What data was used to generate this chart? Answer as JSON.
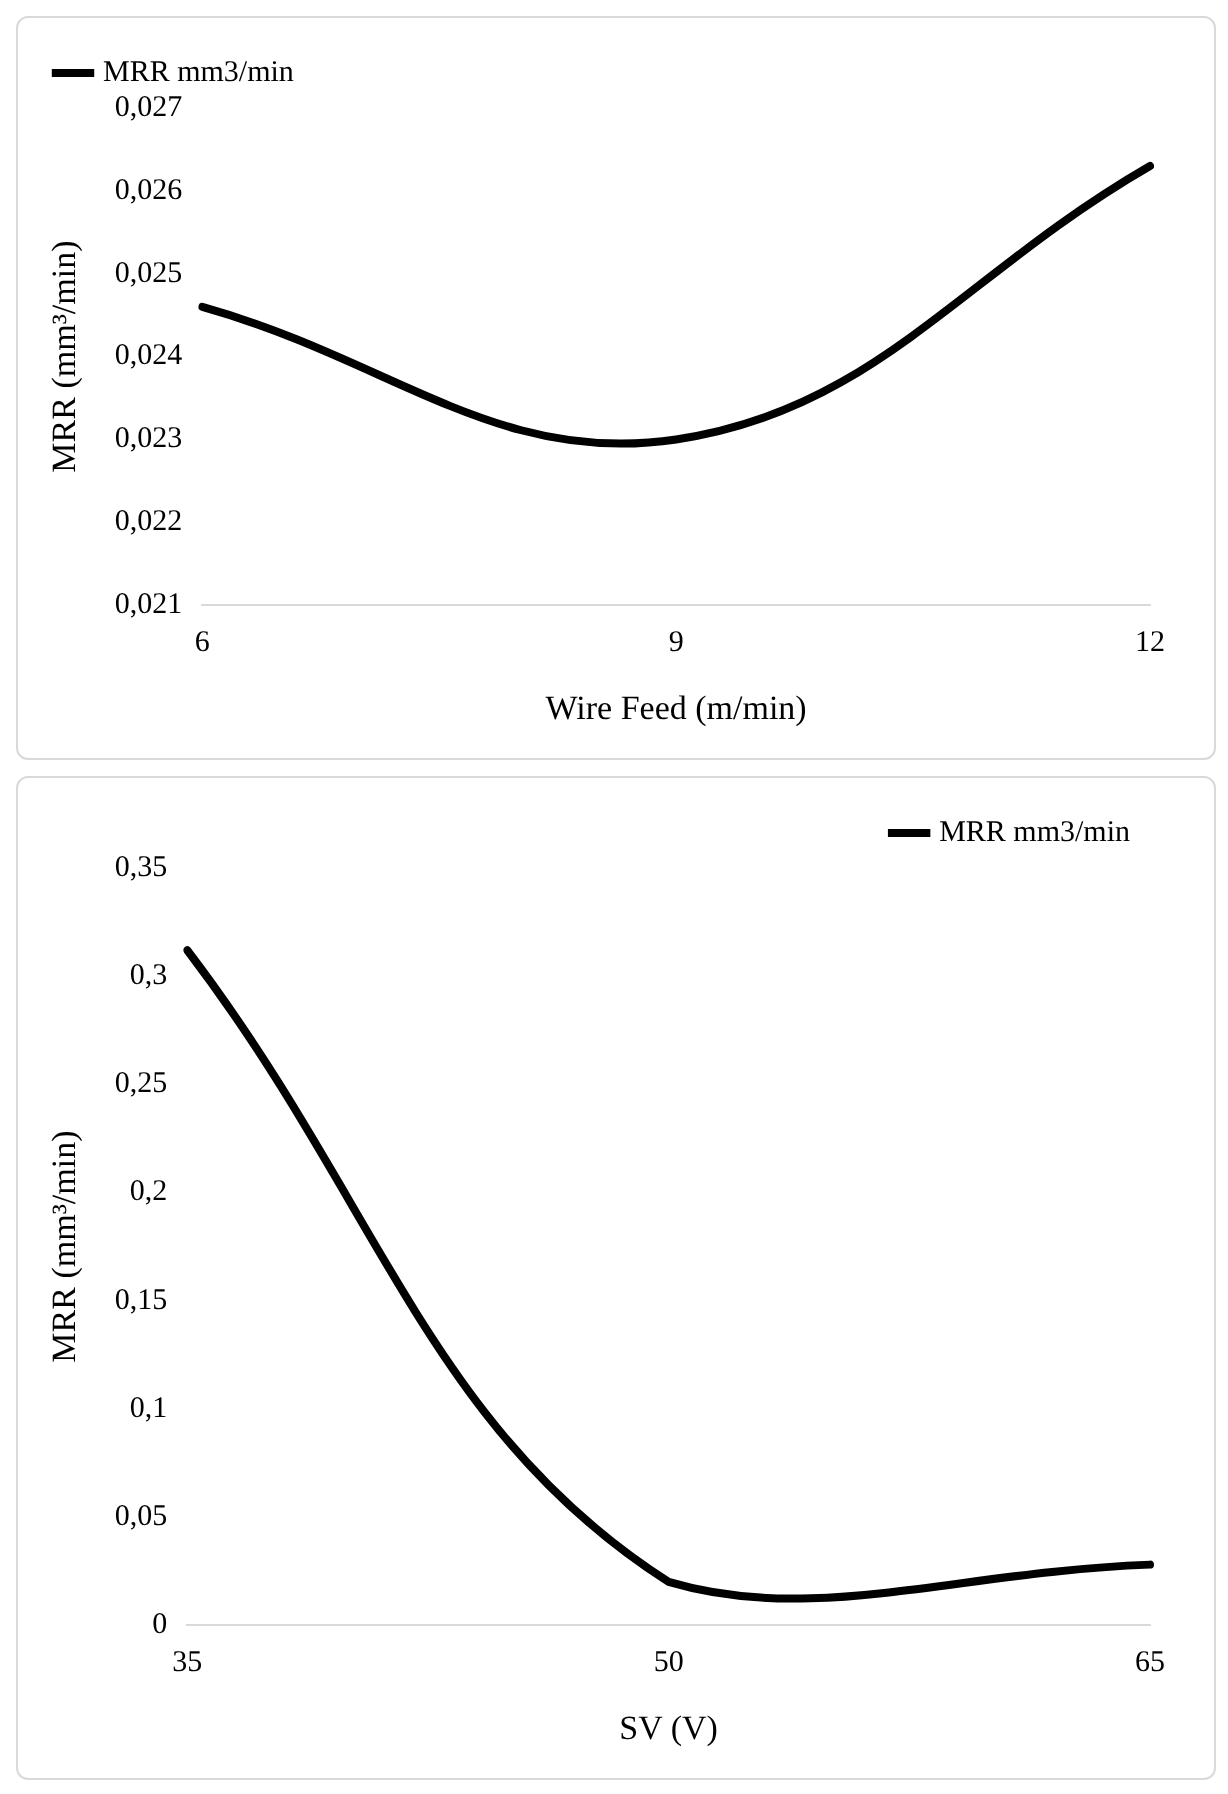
{
  "chart_data": [
    {
      "type": "line",
      "xlabel": "Wire Feed (m/min)",
      "ylabel": "MRR (mm³/min)",
      "categories": [
        "6",
        "9",
        "12"
      ],
      "series": [
        {
          "name": "MRR mm3/min",
          "color": "#000000",
          "values": [
            0.0246,
            0.023,
            0.0263
          ]
        }
      ],
      "ylim": [
        0.021,
        0.027
      ],
      "yticks": [
        {
          "value": 0.021,
          "label": "0,021"
        },
        {
          "value": 0.022,
          "label": "0,022"
        },
        {
          "value": 0.023,
          "label": "0,023"
        },
        {
          "value": 0.024,
          "label": "0,024"
        },
        {
          "value": 0.025,
          "label": "0,025"
        },
        {
          "value": 0.026,
          "label": "0,026"
        },
        {
          "value": 0.027,
          "label": "0,027"
        }
      ],
      "grid": false,
      "legend": "top left",
      "marker": "none",
      "line_style": "solid"
    },
    {
      "type": "line",
      "xlabel": "SV (V)",
      "ylabel": "MRR (mm³/min)",
      "categories": [
        "35",
        "50",
        "65"
      ],
      "series": [
        {
          "name": "MRR mm3/min",
          "color": "#000000",
          "values": [
            0.312,
            0.02,
            0.028
          ]
        }
      ],
      "ylim": [
        0,
        0.35
      ],
      "yticks": [
        {
          "value": 0,
          "label": "0"
        },
        {
          "value": 0.05,
          "label": "0,05"
        },
        {
          "value": 0.1,
          "label": "0,1"
        },
        {
          "value": 0.15,
          "label": "0,15"
        },
        {
          "value": 0.2,
          "label": "0,2"
        },
        {
          "value": 0.25,
          "label": "0,25"
        },
        {
          "value": 0.3,
          "label": "0,3"
        },
        {
          "value": 0.35,
          "label": "0,35"
        }
      ],
      "grid": false,
      "legend": "top right",
      "marker": "none",
      "line_style": "solid"
    }
  ]
}
